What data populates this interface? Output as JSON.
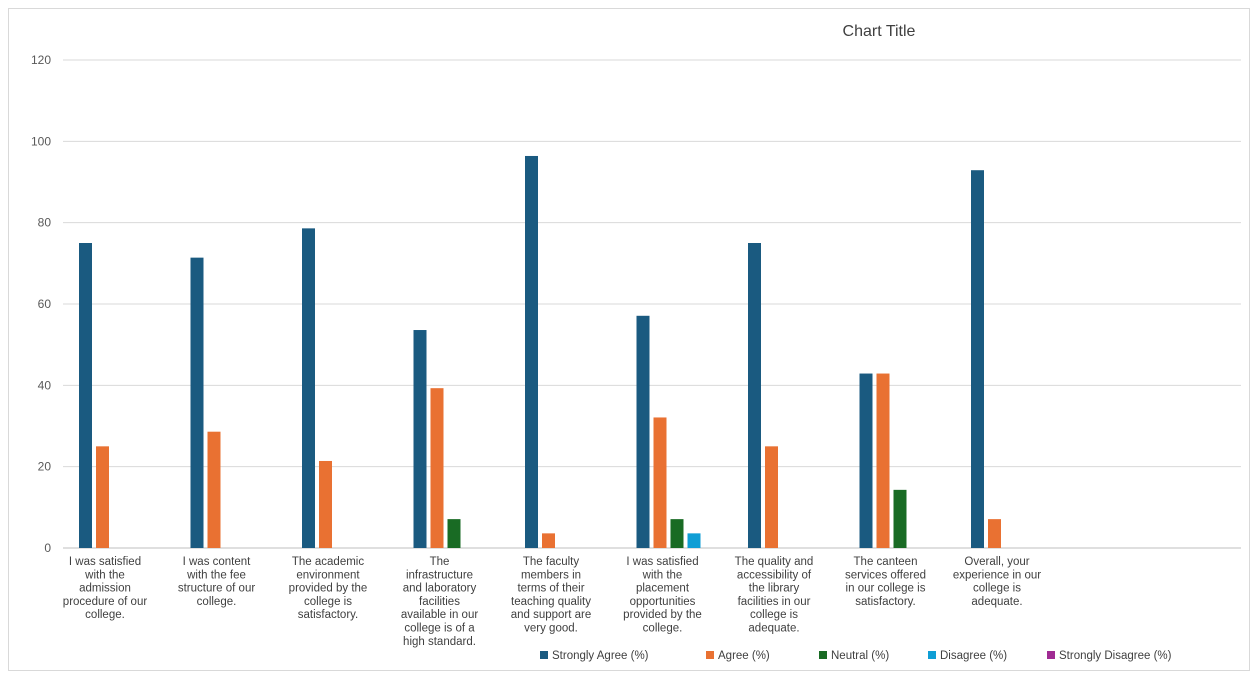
{
  "chart_data": {
    "type": "bar",
    "title": "Chart Title",
    "xlabel": "",
    "ylabel": "",
    "ylim": [
      0,
      120
    ],
    "yticks": [
      0,
      20,
      40,
      60,
      80,
      100,
      120
    ],
    "grid": true,
    "legend_position": "bottom-right",
    "categories": [
      "I was satisfied with the admission procedure of our college.",
      "I was content with the fee structure of our college.",
      "The academic environment provided by the college is satisfactory.",
      "The infrastructure and laboratory facilities available in our college is of a high standard.",
      "The faculty members in terms of their teaching quality and support are very good.",
      "I was satisfied with the placement opportunities provided by the college.",
      "The quality and accessibility of the library facilities in our college is adequate.",
      "The canteen services offered in our college is satisfactory.",
      "Overall, your experience in our college is adequate."
    ],
    "category_lines": [
      [
        "I was satisfied",
        "with the",
        "admission",
        "procedure of our",
        "college."
      ],
      [
        "I was content",
        "with the fee",
        "structure of our",
        "college."
      ],
      [
        "The academic",
        "environment",
        "provided by the",
        "college is",
        "satisfactory."
      ],
      [
        "The",
        "infrastructure",
        "and laboratory",
        "facilities",
        "available in our",
        "college is of a",
        "high standard."
      ],
      [
        "The faculty",
        "members in",
        "terms of their",
        "teaching quality",
        "and support are",
        "very good."
      ],
      [
        "I was satisfied",
        "with the",
        "placement",
        "opportunities",
        "provided by the",
        "college."
      ],
      [
        "The quality and",
        "accessibility of",
        "the library",
        "facilities in our",
        "college is",
        "adequate."
      ],
      [
        "The canteen",
        "services offered",
        "in our college is",
        "satisfactory."
      ],
      [
        "Overall, your",
        "experience in our",
        "college is",
        "adequate."
      ]
    ],
    "series": [
      {
        "name": "Strongly Agree (%)",
        "color": "#1a5a80",
        "values": [
          75,
          71.4,
          78.6,
          53.6,
          96.4,
          57.1,
          75,
          42.9,
          92.9
        ]
      },
      {
        "name": "Agree (%)",
        "color": "#e97132",
        "values": [
          25,
          28.6,
          21.4,
          39.3,
          3.6,
          32.1,
          25,
          42.9,
          7.1
        ]
      },
      {
        "name": "Neutral (%)",
        "color": "#196b24",
        "values": [
          0,
          0,
          0,
          7.1,
          0,
          7.1,
          0,
          14.3,
          0
        ]
      },
      {
        "name": "Disagree (%)",
        "color": "#0f9ed5",
        "values": [
          0,
          0,
          0,
          0,
          0,
          3.6,
          0,
          0,
          0
        ]
      },
      {
        "name": "Strongly Disagree (%)",
        "color": "#a02b93",
        "values": [
          0,
          0,
          0,
          0,
          0,
          0,
          0,
          0,
          0
        ]
      }
    ]
  }
}
